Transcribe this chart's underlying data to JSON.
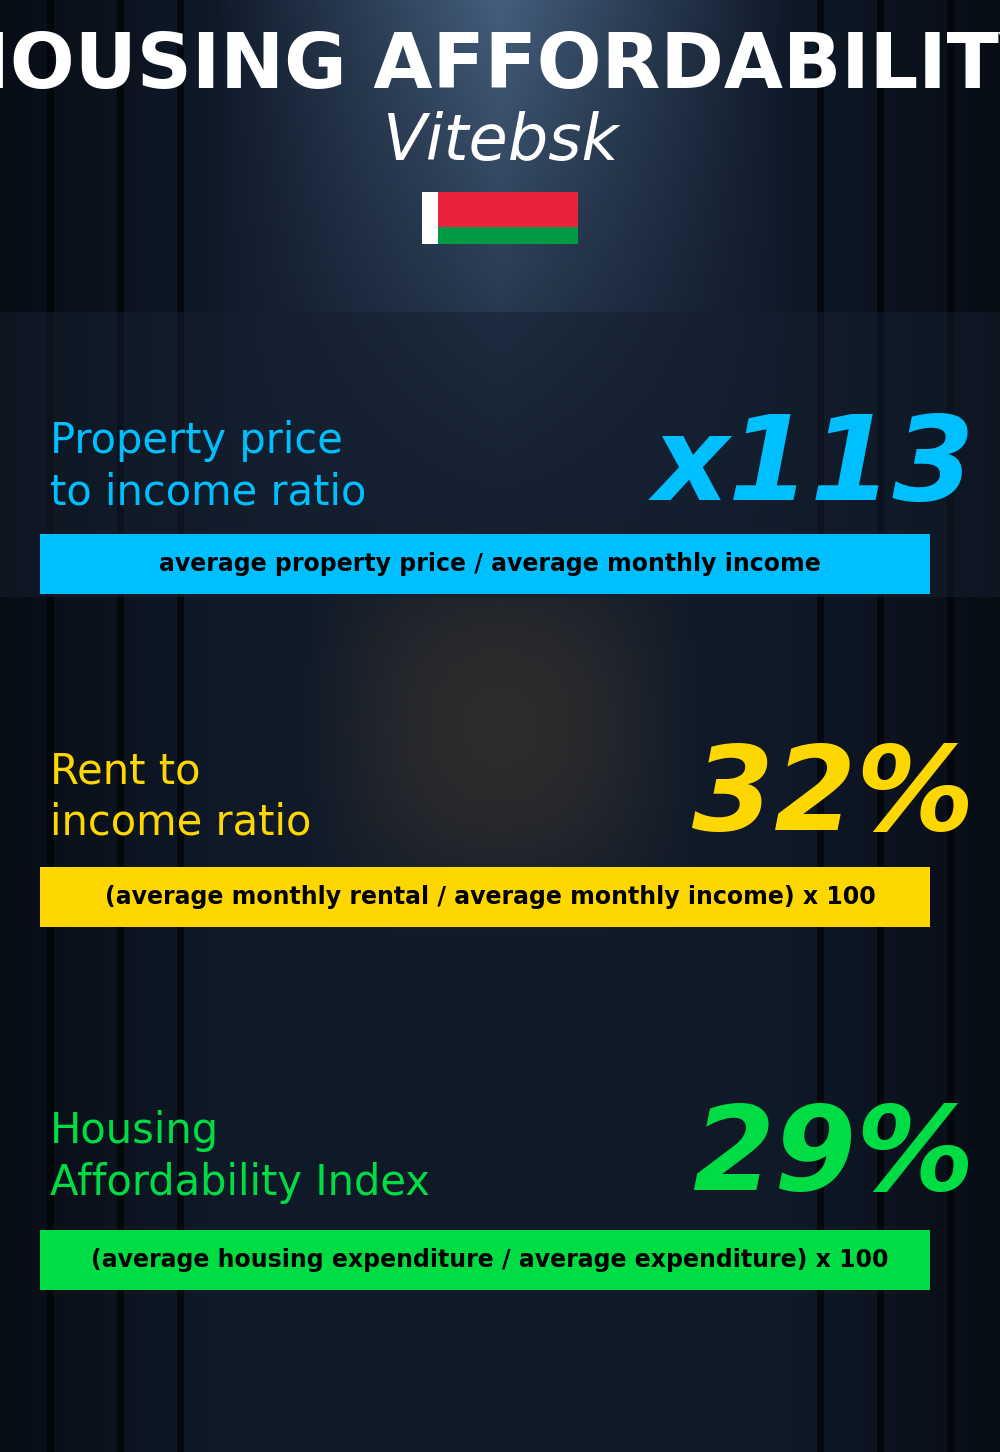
{
  "title_line1": "HOUSING AFFORDABILITY",
  "title_line2": "Vitebsk",
  "bg_color": "#0a1520",
  "title1_color": "#ffffff",
  "title2_color": "#ffffff",
  "section1_label": "Property price\nto income ratio",
  "section1_value": "x113",
  "section1_label_color": "#00bfff",
  "section1_value_color": "#00bfff",
  "section1_band_text": "average property price / average monthly income",
  "section1_band_bg": "#00bfff",
  "section1_band_text_color": "#000000",
  "section2_label": "Rent to\nincome ratio",
  "section2_value": "32%",
  "section2_label_color": "#ffd700",
  "section2_value_color": "#ffd700",
  "section2_band_text": "(average monthly rental / average monthly income) x 100",
  "section2_band_bg": "#ffd700",
  "section2_band_text_color": "#000000",
  "section3_label": "Housing\nAffordability Index",
  "section3_value": "29%",
  "section3_label_color": "#00dd44",
  "section3_value_color": "#00dd44",
  "section3_band_text": "(average housing expenditure / average expenditure) x 100",
  "section3_band_bg": "#00dd44",
  "section3_band_text_color": "#000000",
  "flag_red": "#e8233b",
  "flag_green": "#009a44",
  "flag_white": "#ffffff",
  "panel1_bg": "#1a2a3a",
  "panel1_alpha": 0.45,
  "fig_width": 10.0,
  "fig_height": 14.52,
  "dpi": 100
}
